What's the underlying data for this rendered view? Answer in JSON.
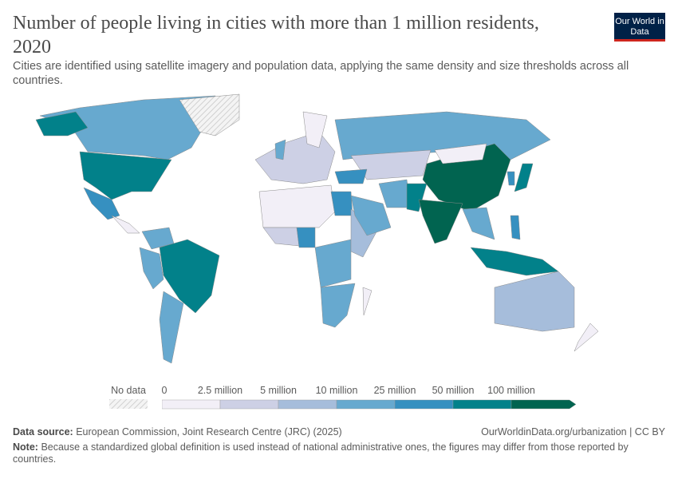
{
  "header": {
    "title": "Number of people living in cities with more than 1 million residents, 2020",
    "subtitle": "Cities are identified using satellite imagery and population data, applying the same density and size thresholds across all countries.",
    "logo_text": "Our World in Data"
  },
  "chart_data": {
    "type": "choropleth-map",
    "year": "2020",
    "legend": {
      "no_data_label": "No data",
      "bins": [
        {
          "from": "0",
          "to": "2.5 million",
          "color": "#f2eff7"
        },
        {
          "from": "2.5 million",
          "to": "5 million",
          "color": "#cdd0e5"
        },
        {
          "from": "5 million",
          "to": "10 million",
          "color": "#a6bddb"
        },
        {
          "from": "10 million",
          "to": "25 million",
          "color": "#67a9cf"
        },
        {
          "from": "25 million",
          "to": "50 million",
          "color": "#3690c0"
        },
        {
          "from": "50 million",
          "to": "100 million",
          "color": "#02818a"
        },
        {
          "from": "100 million",
          "to": null,
          "color": "#016450"
        }
      ],
      "tick_labels": [
        "0",
        "2.5 million",
        "5 million",
        "10 million",
        "25 million",
        "50 million",
        "100 million"
      ],
      "no_data_color": "#e4e4e4"
    },
    "regions": [
      {
        "name": "Canada",
        "bin": 3
      },
      {
        "name": "United States",
        "bin": 5
      },
      {
        "name": "Alaska",
        "bin": 5
      },
      {
        "name": "Mexico",
        "bin": 4
      },
      {
        "name": "Greenland",
        "bin": null
      },
      {
        "name": "Central America",
        "bin": 0
      },
      {
        "name": "Colombia/Venezuela",
        "bin": 3
      },
      {
        "name": "Brazil",
        "bin": 5
      },
      {
        "name": "Peru",
        "bin": 3
      },
      {
        "name": "Argentina",
        "bin": 3
      },
      {
        "name": "North Africa",
        "bin": 0
      },
      {
        "name": "Egypt",
        "bin": 4
      },
      {
        "name": "West Africa",
        "bin": 1
      },
      {
        "name": "Nigeria",
        "bin": 4
      },
      {
        "name": "Central Africa",
        "bin": 3
      },
      {
        "name": "East Africa",
        "bin": 2
      },
      {
        "name": "Southern Africa",
        "bin": 3
      },
      {
        "name": "Madagascar",
        "bin": 0
      },
      {
        "name": "Europe",
        "bin": 1
      },
      {
        "name": "Scandinavia",
        "bin": 0
      },
      {
        "name": "United Kingdom",
        "bin": 3
      },
      {
        "name": "Russia",
        "bin": 3
      },
      {
        "name": "Central Asia",
        "bin": 1
      },
      {
        "name": "Turkey",
        "bin": 4
      },
      {
        "name": "Iran",
        "bin": 3
      },
      {
        "name": "Saudi Arabia",
        "bin": 3
      },
      {
        "name": "Pakistan",
        "bin": 5
      },
      {
        "name": "China",
        "bin": 6
      },
      {
        "name": "India",
        "bin": 6
      },
      {
        "name": "Southeast Asia",
        "bin": 3
      },
      {
        "name": "Mongolia",
        "bin": 0
      },
      {
        "name": "Japan",
        "bin": 5
      },
      {
        "name": "South Korea",
        "bin": 4
      },
      {
        "name": "Indonesia",
        "bin": 5
      },
      {
        "name": "Philippines",
        "bin": 4
      },
      {
        "name": "Australia",
        "bin": 2
      },
      {
        "name": "New Zealand",
        "bin": 0
      }
    ]
  },
  "footer": {
    "source_label": "Data source:",
    "source": "European Commission, Joint Research Centre (JRC) (2025)",
    "url": "OurWorldinData.org/urbanization | CC BY",
    "note_label": "Note:",
    "note": "Because a standardized global definition is used instead of national administrative ones, the figures may differ from those reported by countries."
  }
}
